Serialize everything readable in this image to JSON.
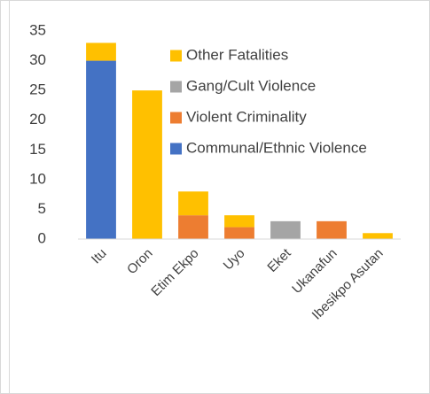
{
  "chart_data": {
    "type": "stacked_bar",
    "categories": [
      "Itu",
      "Oron",
      "Etim Ekpo",
      "Uyo",
      "Eket",
      "Ukanafun",
      "Ibesikpo Asutan"
    ],
    "series": [
      {
        "name": "Communal/Ethnic Violence",
        "color": "#4472c4",
        "values": [
          30,
          0,
          0,
          0,
          0,
          0,
          0
        ]
      },
      {
        "name": "Violent Criminality",
        "color": "#ed7d31",
        "values": [
          0,
          0,
          4,
          2,
          0,
          3,
          0
        ]
      },
      {
        "name": "Gang/Cult Violence",
        "color": "#a5a5a5",
        "values": [
          0,
          0,
          0,
          0,
          3,
          0,
          0
        ]
      },
      {
        "name": "Other Fatalities",
        "color": "#ffc000",
        "values": [
          3,
          25,
          4,
          2,
          0,
          0,
          1
        ]
      }
    ],
    "ylim": [
      0,
      35
    ],
    "yticks": [
      0,
      5,
      10,
      15,
      20,
      25,
      30,
      35
    ],
    "grid": false
  }
}
